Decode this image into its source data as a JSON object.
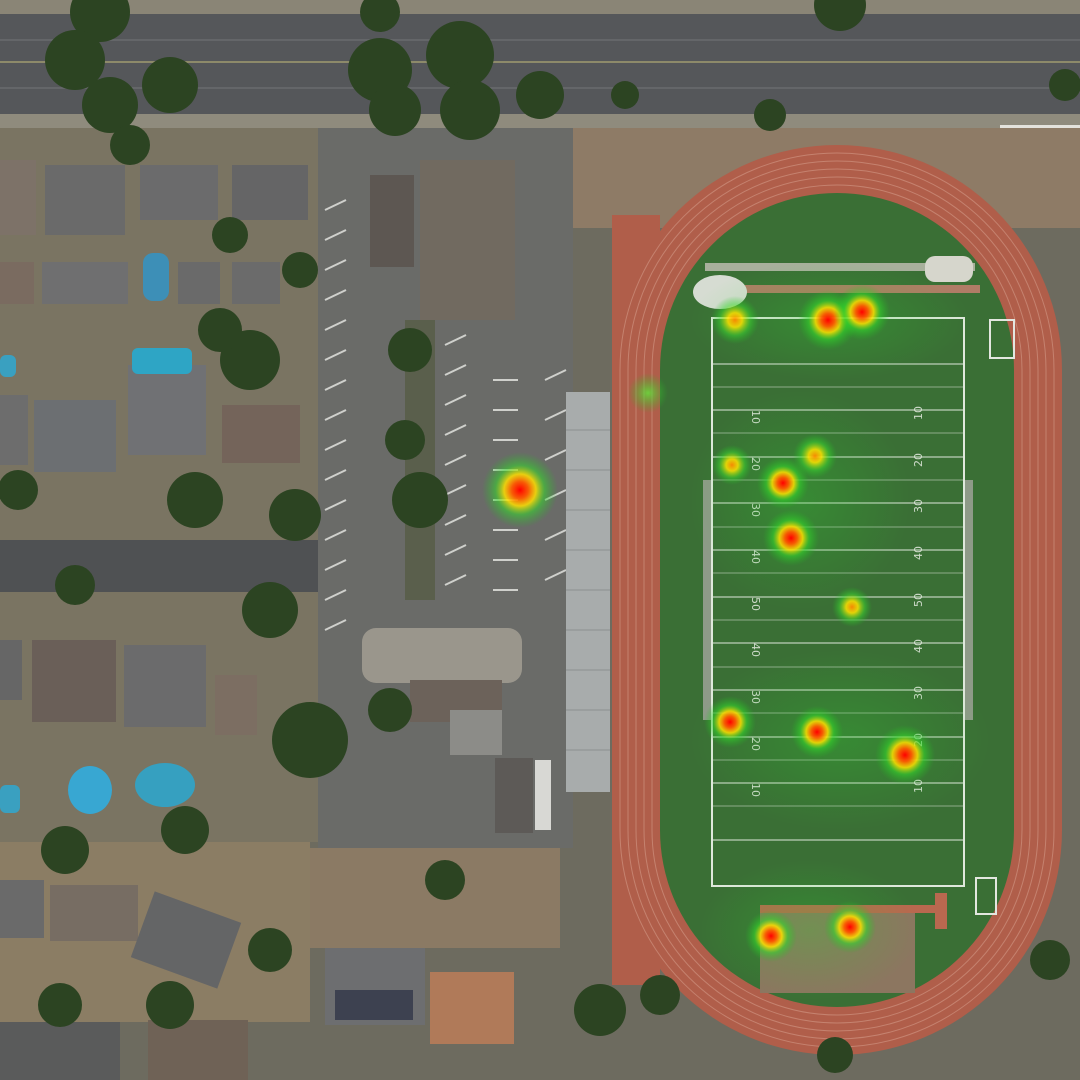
{
  "colors": {
    "road": "#55575a",
    "parking": "#6a6b68",
    "track": "#b05e4a",
    "field": "#3a6f35",
    "roof": "#5b5a59",
    "tree": "#2c4422",
    "heat_hot": "#ff1a00",
    "heat_warm": "#ffd400",
    "heat_cool": "#2fd22f"
  },
  "field_markings": {
    "left_side": [
      "10",
      "20",
      "30",
      "40",
      "50",
      "40",
      "30",
      "20",
      "10"
    ],
    "right_side": [
      "10",
      "20",
      "30",
      "40",
      "50",
      "40",
      "30",
      "20",
      "10"
    ]
  },
  "heatmap": {
    "layer": "activity-density",
    "points": [
      {
        "id": "pt-goal-north-left",
        "intensity": 0.8
      },
      {
        "id": "pt-goal-north-center",
        "intensity": 1.0
      },
      {
        "id": "pt-goal-north-right",
        "intensity": 1.0
      },
      {
        "id": "pt-sideline-west",
        "intensity": 0.3
      },
      {
        "id": "pt-parking-lot",
        "intensity": 0.95
      },
      {
        "id": "pt-field-20-left",
        "intensity": 0.6
      },
      {
        "id": "pt-field-20-right",
        "intensity": 0.75
      },
      {
        "id": "pt-field-30",
        "intensity": 0.85
      },
      {
        "id": "pt-field-40",
        "intensity": 0.9
      },
      {
        "id": "pt-field-50-right",
        "intensity": 0.55
      },
      {
        "id": "pt-field-20-south-left",
        "intensity": 0.95
      },
      {
        "id": "pt-field-20-south-center",
        "intensity": 0.9
      },
      {
        "id": "pt-field-10-south-right",
        "intensity": 1.0
      },
      {
        "id": "pt-south-pad-left",
        "intensity": 0.9
      },
      {
        "id": "pt-south-pad-right",
        "intensity": 0.9
      }
    ]
  }
}
